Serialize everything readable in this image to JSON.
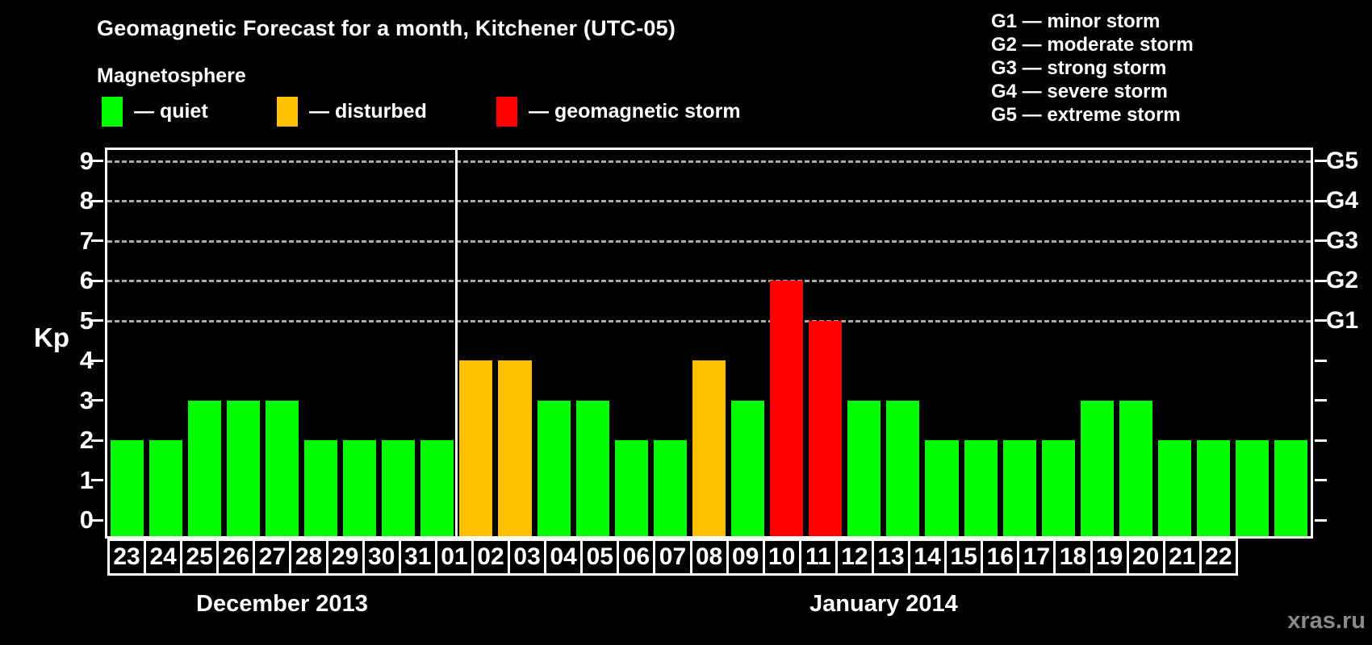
{
  "title": "Geomagnetic Forecast for a month, Kitchener (UTC-05)",
  "legend": {
    "heading": "Magnetosphere",
    "items": [
      {
        "key": "quiet",
        "label": "— quiet"
      },
      {
        "key": "disturbed",
        "label": "— disturbed"
      },
      {
        "key": "storm",
        "label": "— geomagnetic storm"
      }
    ]
  },
  "g_legend": [
    "G1 — minor storm",
    "G2 — moderate storm",
    "G3 — strong storm",
    "G4 — severe storm",
    "G5 — extreme storm"
  ],
  "watermark": "xras.ru",
  "chart_data": {
    "type": "bar",
    "ylabel": "Kp",
    "ylim": [
      0,
      9
    ],
    "y_ticks": [
      0,
      1,
      2,
      3,
      4,
      5,
      6,
      7,
      8,
      9
    ],
    "gridline_kp": [
      5,
      6,
      7,
      8,
      9
    ],
    "g_axis": [
      {
        "label": "G1",
        "kp": 5
      },
      {
        "label": "G2",
        "kp": 6
      },
      {
        "label": "G3",
        "kp": 7
      },
      {
        "label": "G4",
        "kp": 8
      },
      {
        "label": "G5",
        "kp": 9
      }
    ],
    "status_colors": {
      "quiet": "#00ff00",
      "disturbed": "#ffc000",
      "storm": "#ff0000"
    },
    "grid": "dashed-at-storm-levels",
    "legend_position": "top",
    "months": [
      {
        "label": "December 2013",
        "bars": [
          {
            "day": "23",
            "kp": 2,
            "status": "quiet"
          },
          {
            "day": "24",
            "kp": 2,
            "status": "quiet"
          },
          {
            "day": "25",
            "kp": 3,
            "status": "quiet"
          },
          {
            "day": "26",
            "kp": 3,
            "status": "quiet"
          },
          {
            "day": "27",
            "kp": 3,
            "status": "quiet"
          },
          {
            "day": "28",
            "kp": 2,
            "status": "quiet"
          },
          {
            "day": "29",
            "kp": 2,
            "status": "quiet"
          },
          {
            "day": "30",
            "kp": 2,
            "status": "quiet"
          },
          {
            "day": "31",
            "kp": 2,
            "status": "quiet"
          }
        ]
      },
      {
        "label": "January 2014",
        "bars": [
          {
            "day": "01",
            "kp": 4,
            "status": "disturbed"
          },
          {
            "day": "02",
            "kp": 4,
            "status": "disturbed"
          },
          {
            "day": "03",
            "kp": 3,
            "status": "quiet"
          },
          {
            "day": "04",
            "kp": 3,
            "status": "quiet"
          },
          {
            "day": "05",
            "kp": 2,
            "status": "quiet"
          },
          {
            "day": "06",
            "kp": 2,
            "status": "quiet"
          },
          {
            "day": "07",
            "kp": 4,
            "status": "disturbed"
          },
          {
            "day": "08",
            "kp": 3,
            "status": "quiet"
          },
          {
            "day": "09",
            "kp": 6,
            "status": "storm"
          },
          {
            "day": "10",
            "kp": 5,
            "status": "storm"
          },
          {
            "day": "11",
            "kp": 3,
            "status": "quiet"
          },
          {
            "day": "12",
            "kp": 3,
            "status": "quiet"
          },
          {
            "day": "13",
            "kp": 2,
            "status": "quiet"
          },
          {
            "day": "14",
            "kp": 2,
            "status": "quiet"
          },
          {
            "day": "15",
            "kp": 2,
            "status": "quiet"
          },
          {
            "day": "16",
            "kp": 2,
            "status": "quiet"
          },
          {
            "day": "17",
            "kp": 3,
            "status": "quiet"
          },
          {
            "day": "18",
            "kp": 3,
            "status": "quiet"
          },
          {
            "day": "19",
            "kp": 2,
            "status": "quiet"
          },
          {
            "day": "20",
            "kp": 2,
            "status": "quiet"
          },
          {
            "day": "21",
            "kp": 2,
            "status": "quiet"
          },
          {
            "day": "22",
            "kp": 2,
            "status": "quiet"
          }
        ]
      }
    ]
  }
}
